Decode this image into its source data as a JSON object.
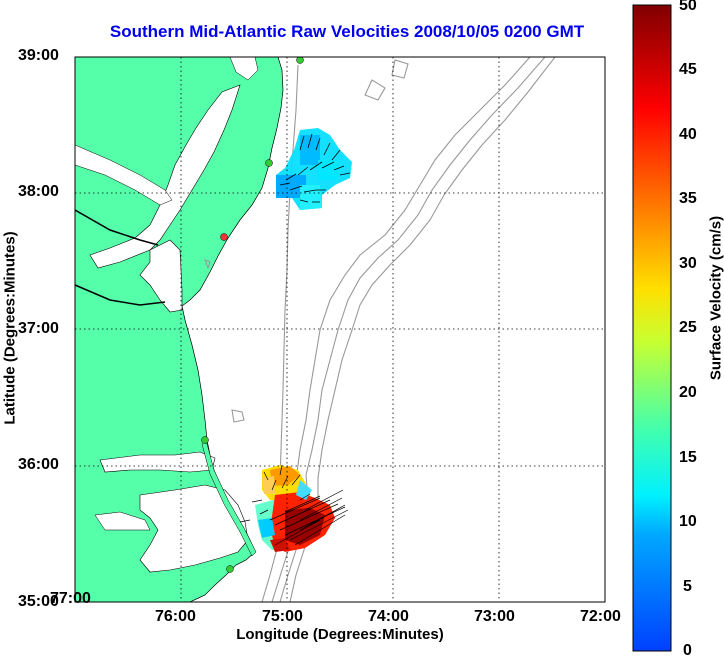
{
  "title": "Southern Mid-Atlantic Raw Velocities 2008/10/05 0200 GMT",
  "xlabel": "Longitude (Degrees:Minutes)",
  "ylabel": "Latitude (Degrees:Minutes)",
  "colorbar": {
    "label": "Surface Velocity (cm/s)",
    "ticks": [
      "0",
      "5",
      "10",
      "15",
      "20",
      "25",
      "30",
      "35",
      "40",
      "45",
      "50"
    ],
    "range": [
      0,
      50
    ],
    "colors": [
      "#0044ff",
      "#00b0ff",
      "#00ffff",
      "#55ff99",
      "#ffff00",
      "#ff8800",
      "#ff0000",
      "#800000"
    ]
  },
  "map": {
    "x_ticks": [
      "77:00",
      "76:00",
      "75:00",
      "74:00",
      "73:00",
      "72:00"
    ],
    "y_ticks": [
      "35:00",
      "36:00",
      "37:00",
      "38:00",
      "39:00"
    ],
    "lon_range": [
      -77,
      -72
    ],
    "lat_range": [
      35,
      39
    ],
    "land_color": "#55ffaa",
    "station_color": "#33cc33",
    "inactive_station_color": "#ff3333"
  }
}
